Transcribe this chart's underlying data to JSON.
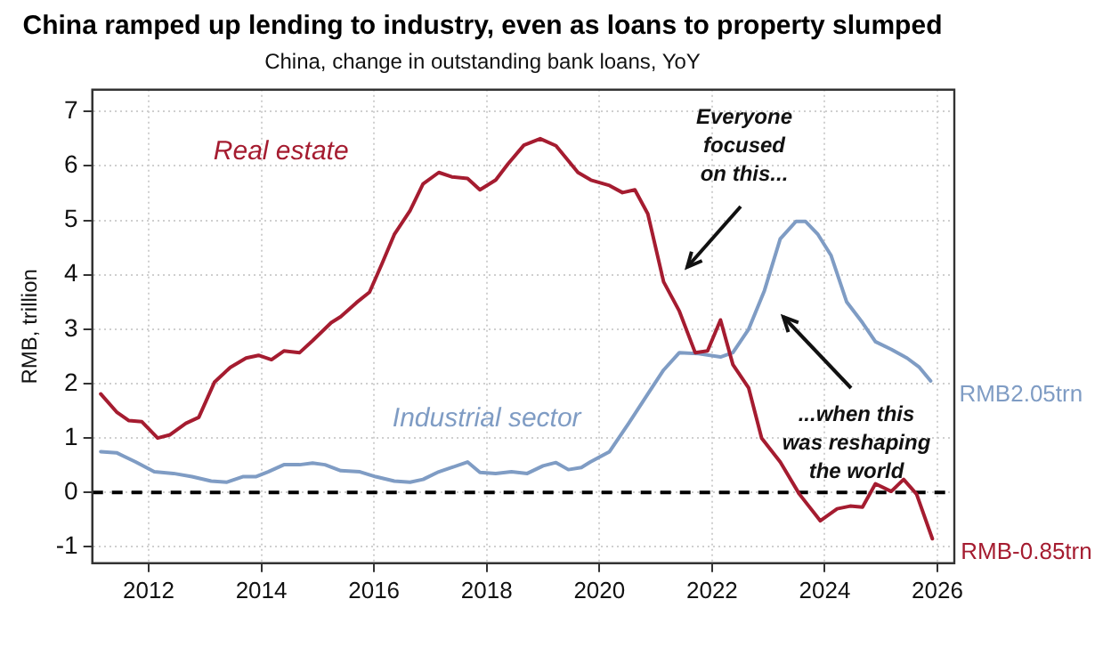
{
  "chart_data": {
    "type": "line",
    "title": "China ramped up lending to industry, even as loans to property slumped",
    "subtitle": "China, change in outstanding bank loans, YoY",
    "ylabel": "RMB, trillion",
    "xlim": [
      2011,
      2026.3
    ],
    "xticks": [
      2012,
      2014,
      2016,
      2018,
      2020,
      2022,
      2024,
      2026
    ],
    "ylim": [
      -1.3,
      7.4
    ],
    "yticks": [
      -1,
      0,
      1,
      2,
      3,
      4,
      5,
      6,
      7
    ],
    "grid": true,
    "legend": false,
    "marker": "none",
    "line_style": "solid",
    "ref_lines": [
      {
        "axis": "y",
        "value": 0,
        "color": "#000000",
        "line_style": "dashed"
      }
    ],
    "annotations": [
      "Everyone focused on this...",
      "...when this was reshaping the world",
      {
        "text": "RMB2.05trn",
        "x": 2025.88,
        "y": 2.05
      },
      {
        "text": "RMB-0.85trn",
        "x": 2025.91,
        "y": -0.85
      }
    ],
    "series": [
      {
        "name": "Real estate",
        "color": "#a51c30",
        "x": [
          2011.15,
          2011.43,
          2011.65,
          2011.88,
          2012.16,
          2012.38,
          2012.66,
          2012.89,
          2013.17,
          2013.45,
          2013.73,
          2013.95,
          2014.18,
          2014.4,
          2014.68,
          2014.91,
          2015.24,
          2015.41,
          2015.69,
          2015.92,
          2016.14,
          2016.36,
          2016.64,
          2016.87,
          2017.15,
          2017.38,
          2017.66,
          2017.88,
          2018.16,
          2018.38,
          2018.66,
          2018.95,
          2019.23,
          2019.62,
          2019.85,
          2020.18,
          2020.41,
          2020.63,
          2020.86,
          2021.14,
          2021.42,
          2021.7,
          2021.92,
          2022.15,
          2022.37,
          2022.65,
          2022.88,
          2023.21,
          2023.55,
          2023.92,
          2024.22,
          2024.45,
          2024.67,
          2024.9,
          2025.18,
          2025.4,
          2025.63,
          2025.91
        ],
        "values": [
          1.81,
          1.48,
          1.32,
          1.3,
          1.0,
          1.06,
          1.27,
          1.38,
          2.03,
          2.3,
          2.47,
          2.52,
          2.44,
          2.6,
          2.57,
          2.79,
          3.12,
          3.23,
          3.49,
          3.68,
          4.2,
          4.74,
          5.18,
          5.67,
          5.88,
          5.8,
          5.77,
          5.56,
          5.74,
          6.04,
          6.38,
          6.5,
          6.37,
          5.88,
          5.74,
          5.64,
          5.51,
          5.56,
          5.12,
          3.87,
          3.33,
          2.57,
          2.6,
          3.17,
          2.35,
          1.92,
          1.0,
          0.56,
          -0.03,
          -0.52,
          -0.3,
          -0.25,
          -0.27,
          0.16,
          0.02,
          0.24,
          -0.03,
          -0.85
        ]
      },
      {
        "name": "Industrial sector",
        "color": "#7f9cc4",
        "x": [
          2011.15,
          2011.43,
          2011.77,
          2012.1,
          2012.44,
          2012.77,
          2013.11,
          2013.39,
          2013.67,
          2013.9,
          2014.12,
          2014.4,
          2014.68,
          2014.91,
          2015.13,
          2015.41,
          2015.75,
          2016.03,
          2016.36,
          2016.64,
          2016.87,
          2017.15,
          2017.38,
          2017.66,
          2017.88,
          2018.16,
          2018.44,
          2018.72,
          2019.0,
          2019.23,
          2019.45,
          2019.68,
          2019.84,
          2020.18,
          2020.52,
          2020.86,
          2021.14,
          2021.42,
          2021.76,
          2022.15,
          2022.37,
          2022.65,
          2022.93,
          2023.21,
          2023.49,
          2023.66,
          2023.88,
          2024.11,
          2024.39,
          2024.67,
          2024.9,
          2025.18,
          2025.46,
          2025.68,
          2025.88
        ],
        "values": [
          0.75,
          0.73,
          0.56,
          0.38,
          0.35,
          0.29,
          0.21,
          0.19,
          0.29,
          0.29,
          0.38,
          0.51,
          0.51,
          0.54,
          0.51,
          0.4,
          0.38,
          0.29,
          0.21,
          0.19,
          0.24,
          0.38,
          0.46,
          0.56,
          0.37,
          0.35,
          0.38,
          0.35,
          0.49,
          0.55,
          0.42,
          0.46,
          0.56,
          0.75,
          1.27,
          1.81,
          2.25,
          2.57,
          2.55,
          2.49,
          2.57,
          3.0,
          3.71,
          4.66,
          4.98,
          4.98,
          4.74,
          4.36,
          3.5,
          3.12,
          2.77,
          2.63,
          2.47,
          2.3,
          2.05
        ]
      }
    ]
  }
}
